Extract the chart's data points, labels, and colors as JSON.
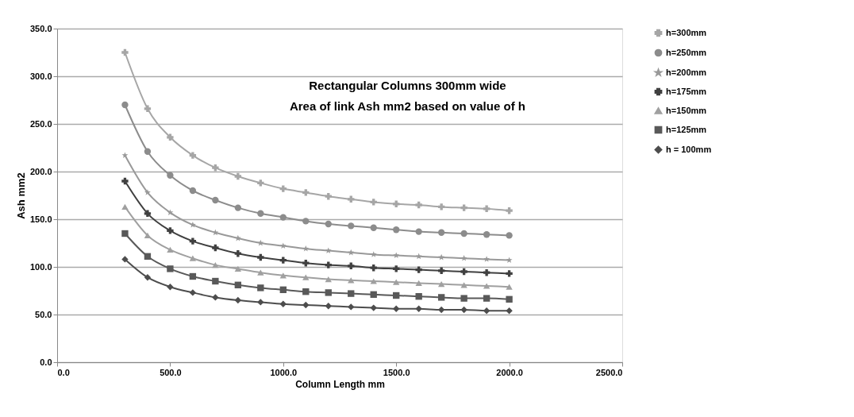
{
  "chart_data": {
    "type": "line",
    "title": "Rectangular Columns 300mm wide",
    "subtitle": "Area of link Ash mm2 based on value of h",
    "xlabel": "Column Length mm",
    "ylabel": "Ash mm2",
    "x": [
      300,
      400,
      500,
      600,
      700,
      800,
      900,
      1000,
      1100,
      1200,
      1300,
      1400,
      1500,
      1600,
      1700,
      1800,
      1900,
      2000
    ],
    "series": [
      {
        "name": "h=300mm",
        "color": "#a6a6a6",
        "marker": "cross",
        "values": [
          325,
          266,
          236,
          217,
          204,
          195,
          188,
          182,
          178,
          174,
          171,
          168,
          166,
          165,
          163,
          162,
          161,
          159
        ]
      },
      {
        "name": "h=250mm",
        "color": "#8c8c8c",
        "marker": "circle",
        "values": [
          270,
          221,
          196,
          180,
          170,
          162,
          156,
          152,
          148,
          145,
          143,
          141,
          139,
          137,
          136,
          135,
          134,
          133
        ]
      },
      {
        "name": "h=200mm",
        "color": "#999999",
        "marker": "star",
        "values": [
          217,
          178,
          157,
          144,
          136,
          130,
          125,
          122,
          119,
          117,
          115,
          113,
          112,
          111,
          110,
          109,
          108,
          107
        ]
      },
      {
        "name": "h=175mm",
        "color": "#404040",
        "marker": "cross",
        "values": [
          190,
          156,
          138,
          127,
          120,
          114,
          110,
          107,
          104,
          102,
          101,
          99,
          98,
          97,
          96,
          95,
          94,
          93
        ]
      },
      {
        "name": "h=150mm",
        "color": "#a0a0a0",
        "marker": "triangle",
        "values": [
          163,
          133,
          118,
          109,
          102,
          98,
          94,
          91,
          89,
          87,
          86,
          85,
          84,
          83,
          82,
          81,
          80,
          79
        ]
      },
      {
        "name": "h=125mm",
        "color": "#595959",
        "marker": "square",
        "values": [
          135,
          111,
          98,
          90,
          85,
          81,
          78,
          76,
          74,
          73,
          72,
          71,
          70,
          69,
          68,
          67,
          67,
          66
        ]
      },
      {
        "name": "h = 100mm",
        "color": "#4d4d4d",
        "marker": "diamond",
        "values": [
          108,
          89,
          79,
          73,
          68,
          65,
          63,
          61,
          60,
          59,
          58,
          57,
          56,
          56,
          55,
          55,
          54,
          54
        ]
      }
    ],
    "xlim": [
      0,
      2500
    ],
    "xticks": [
      {
        "value": 0,
        "label": "0.0"
      },
      {
        "value": 500,
        "label": "500.0"
      },
      {
        "value": 1000,
        "label": "1000.0"
      },
      {
        "value": 1500,
        "label": "1500.0"
      },
      {
        "value": 2000,
        "label": "2000.0"
      },
      {
        "value": 2500,
        "label": "2500.0"
      }
    ],
    "ylim": [
      0,
      350
    ],
    "yticks": [
      {
        "value": 0,
        "label": "0.0"
      },
      {
        "value": 50,
        "label": "50.0"
      },
      {
        "value": 100,
        "label": "100.0"
      },
      {
        "value": 150,
        "label": "150.0"
      },
      {
        "value": 200,
        "label": "200.0"
      },
      {
        "value": 250,
        "label": "250.0"
      },
      {
        "value": 300,
        "label": "300.0"
      },
      {
        "value": 350,
        "label": "350.0"
      }
    ],
    "grid": "y",
    "legend": "right",
    "line_style": "solid"
  }
}
